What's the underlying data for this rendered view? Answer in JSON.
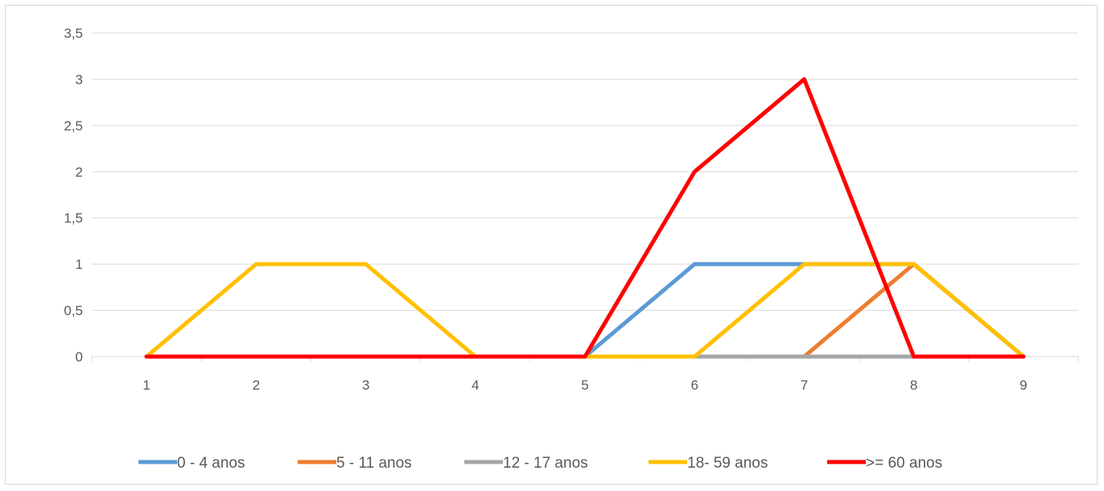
{
  "chart_data": {
    "type": "line",
    "title": "",
    "xlabel": "",
    "ylabel": "",
    "x": [
      1,
      2,
      3,
      4,
      5,
      6,
      7,
      8,
      9
    ],
    "x_tick_labels": [
      "1",
      "2",
      "3",
      "4",
      "5",
      "6",
      "7",
      "8",
      "9"
    ],
    "ylim": [
      0,
      3.5
    ],
    "y_ticks": [
      0,
      0.5,
      1,
      1.5,
      2,
      2.5,
      3,
      3.5
    ],
    "y_tick_labels": [
      "0",
      "0,5",
      "1",
      "1,5",
      "2",
      "2,5",
      "3",
      "3,5"
    ],
    "grid": true,
    "legend_position": "bottom",
    "series": [
      {
        "name": "0 - 4 anos",
        "color": "#5b9bd5",
        "values": [
          0,
          0,
          0,
          0,
          0,
          1,
          1,
          1,
          0
        ]
      },
      {
        "name": "5 - 11 anos",
        "color": "#ed7d31",
        "values": [
          0,
          0,
          0,
          0,
          0,
          0,
          0,
          1,
          0
        ]
      },
      {
        "name": "12 - 17 anos",
        "color": "#a5a5a5",
        "values": [
          0,
          0,
          0,
          0,
          0,
          0,
          0,
          0,
          0
        ]
      },
      {
        "name": "18- 59 anos",
        "color": "#ffc000",
        "values": [
          0,
          1,
          1,
          0,
          0,
          0,
          1,
          1,
          0
        ]
      },
      {
        "name": ">= 60 anos",
        "color": "#ff0000",
        "values": [
          0,
          0,
          0,
          0,
          0,
          2,
          3,
          0,
          0
        ]
      }
    ]
  }
}
